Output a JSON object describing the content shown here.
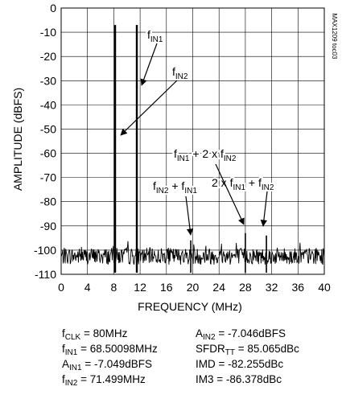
{
  "chart_data": {
    "type": "line",
    "title": "",
    "xlabel": "FREQUENCY (MHz)",
    "ylabel": "AMPLITUDE (dBFS)",
    "xlim": [
      0,
      40
    ],
    "ylim": [
      -110,
      0
    ],
    "xticks": [
      0,
      4,
      8,
      12,
      16,
      20,
      24,
      28,
      32,
      36,
      40
    ],
    "yticks": [
      0,
      -10,
      -20,
      -30,
      -40,
      -50,
      -60,
      -70,
      -80,
      -90,
      -100,
      -110
    ],
    "grid": true,
    "noise_floor_dBFS": -102,
    "peaks": [
      {
        "x": 8.2,
        "y": -7
      },
      {
        "x": 11.5,
        "y": -7
      },
      {
        "x": 19.7,
        "y": -96
      },
      {
        "x": 28.0,
        "y": -93
      },
      {
        "x": 31.2,
        "y": -94
      }
    ],
    "annotations": [
      {
        "base": "f",
        "sub": "IN1",
        "rest": "",
        "sub2": "",
        "rest2": ""
      },
      {
        "base": "f",
        "sub": "IN2",
        "rest": "",
        "sub2": "",
        "rest2": ""
      },
      {
        "base": "f",
        "sub": "IN1",
        "rest": " + 2 x f",
        "sub2": "IN2",
        "rest2": ""
      },
      {
        "base": "2 x f",
        "sub": "IN1",
        "rest": " + f",
        "sub2": "IN2",
        "rest2": ""
      },
      {
        "base": "f",
        "sub": "IN2",
        "rest": " + f",
        "sub2": "IN1",
        "rest2": ""
      }
    ],
    "side_note": "MAX1209 toc03"
  },
  "params": [
    {
      "base": "f",
      "sub": "CLK",
      "rest": " = 80MHz"
    },
    {
      "base": "A",
      "sub": "IN2",
      "rest": " = -7.046dBFS"
    },
    {
      "base": "f",
      "sub": "IN1",
      "rest": " = 68.50098MHz"
    },
    {
      "base": "SFDR",
      "sub": "TT",
      "rest": " = 85.065dBc"
    },
    {
      "base": "A",
      "sub": "IN1",
      "rest": " = -7.049dBFS"
    },
    {
      "base": "IMD",
      "sub": "",
      "rest": " = -82.255dBc"
    },
    {
      "base": "f",
      "sub": "IN2",
      "rest": " = 71.499MHz"
    },
    {
      "base": "IM3",
      "sub": "",
      "rest": " = -86.378dBc"
    }
  ]
}
